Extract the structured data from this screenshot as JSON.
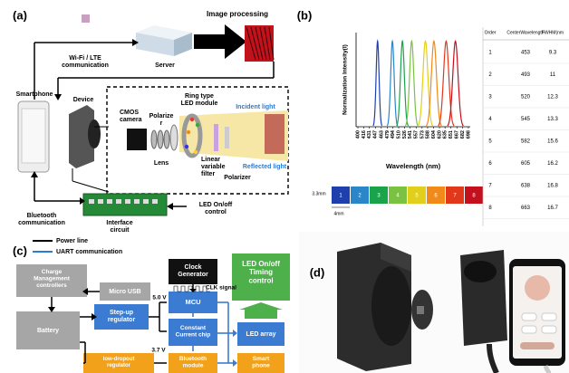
{
  "panel_a": {
    "label": "(a)",
    "image_processing": "Image processing",
    "server": "Server",
    "wifi": [
      "Wi-Fi / LTE",
      "communication"
    ],
    "smartphone": "Smartphone",
    "device": "Device",
    "cmos": [
      "CMOS",
      "camera"
    ],
    "polarizer_1": [
      "Polarize",
      "r"
    ],
    "ring_led": [
      "Ring type",
      "LED module"
    ],
    "incident": "Incident light",
    "lens": "Lens",
    "reflected": "Reflected light",
    "filter": [
      "Linear",
      "variable",
      "filter"
    ],
    "polarizer_2": "Polarizer",
    "bluetooth": [
      "Bluetooth",
      "communication"
    ],
    "interface": [
      "Interface",
      "circuit"
    ],
    "led_control": [
      "LED On/off",
      "control"
    ]
  },
  "panel_b": {
    "label": "(b)"
  },
  "chart_data": {
    "type": "line",
    "ylabel": "Normalization Intensity(I)",
    "xlabel": "Wavelength (nm)",
    "xlim": [
      395,
      703
    ],
    "xticks": [
      400,
      416,
      431,
      447,
      463,
      479,
      494,
      510,
      526,
      541,
      557,
      573,
      588,
      604,
      620,
      635,
      651,
      667,
      682,
      698
    ],
    "ylim": [
      0,
      1.1
    ],
    "colors": [
      "#1f3fae",
      "#2a86c8",
      "#19a34a",
      "#7cc242",
      "#e2cf1c",
      "#f08a1a",
      "#e2371b",
      "#c4101c"
    ],
    "table": {
      "columns": [
        "Order",
        "CenterWavelength",
        "FWHM(nm"
      ],
      "rows": [
        [
          1,
          453,
          9.3
        ],
        [
          2,
          493,
          11.0
        ],
        [
          3,
          520,
          12.3
        ],
        [
          4,
          545,
          13.3
        ],
        [
          5,
          582,
          15.6
        ],
        [
          6,
          605,
          16.2
        ],
        [
          7,
          638,
          16.8
        ],
        [
          8,
          663,
          16.7
        ]
      ]
    },
    "filter_bar": {
      "labels": [
        "1",
        "2",
        "3",
        "4",
        "5",
        "6",
        "7",
        "8"
      ],
      "height": "3.3mm",
      "width": "4mm"
    }
  },
  "panel_c": {
    "label": "(c)",
    "legend": [
      "Power line",
      "UART communication"
    ],
    "clock": [
      "Clock",
      "Generator"
    ],
    "clk": "CLK signal",
    "timing": [
      "LED On/off",
      "Timing",
      "control"
    ],
    "charge": [
      "Charge",
      "Management",
      "controllers"
    ],
    "usb": "Micro USB",
    "stepup": [
      "Step-up",
      "regulator"
    ],
    "v5": "5.0 V",
    "mcu": "MCU",
    "ccc": [
      "Constant",
      "Current chip"
    ],
    "led_array": "LED array",
    "battery": "Battery",
    "ldo": [
      "low-dropout",
      "regulator"
    ],
    "v37": "3.7 V",
    "bt": [
      "Bluetooth",
      "module"
    ],
    "phone": [
      "Smart",
      "phone"
    ]
  },
  "panel_d": {
    "label": "(d)"
  }
}
